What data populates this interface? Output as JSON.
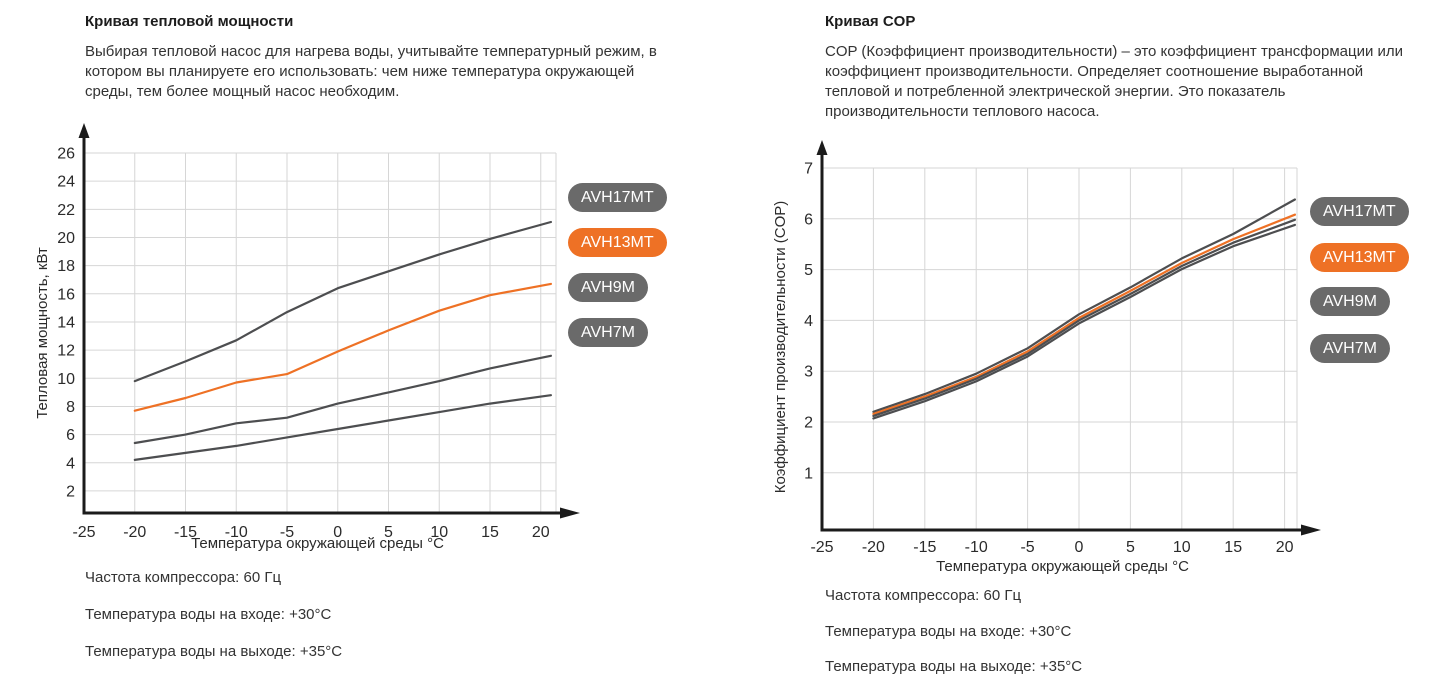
{
  "colors": {
    "orange": "#ee7125",
    "badge_gray": "#6a6a6a",
    "curve_gray": "#4d4e50",
    "grid": "#d6d6d6",
    "axis": "#1b1b1b",
    "text": "#333333",
    "tick_text": "#2b2b2b",
    "badge_text": "#ffffff"
  },
  "left_panel": {
    "title": "Кривая тепловой мощности",
    "description_lines": [
      "Выбирая тепловой насос для нагрева воды, учитывайте температурный режим, в",
      "котором вы планируете его использовать: чем ниже температура окружающей",
      "среды, тем более мощный насос необходим."
    ],
    "notes": [
      "Частота компрессора: 60 Гц",
      "Температура воды на входе: +30°C",
      "Температура воды на выходе: +35°C"
    ]
  },
  "right_panel": {
    "title": "Кривая COP",
    "description_lines": [
      "COP (Коэффициент производительности) – это коэффициент трансформации или",
      "коэффициент производительности. Определяет соотношение выработанной",
      "тепловой и потребленной электрической энергии. Это показатель",
      "производительности теплового насоса."
    ],
    "notes": [
      "Частота компрессора: 60 Гц",
      "Температура воды на входе: +30°C",
      "Температура воды на выходе: +35°C"
    ]
  },
  "chart_data": [
    {
      "type": "line",
      "title": "Кривая тепловой мощности",
      "xlabel": "Температура окружающей среды °C",
      "ylabel": "Тепловая мощность, кВт",
      "grid": true,
      "legend_position": "right",
      "xlim": [
        -25,
        21.5
      ],
      "ylim": [
        0,
        27
      ],
      "xticks": [
        -25,
        -20,
        -15,
        -10,
        -5,
        0,
        5,
        10,
        15,
        20
      ],
      "yticks": [
        2,
        4,
        6,
        8,
        10,
        12,
        14,
        16,
        18,
        20,
        22,
        24,
        26
      ],
      "x": [
        -20,
        -15,
        -10,
        -5,
        0,
        5,
        10,
        15,
        21
      ],
      "series": [
        {
          "name": "AVH17MT",
          "color": "#4d4e50",
          "values": [
            9.8,
            11.2,
            12.7,
            14.7,
            16.4,
            17.6,
            18.8,
            19.9,
            21.1
          ]
        },
        {
          "name": "AVH13MT",
          "color": "#ee7125",
          "values": [
            7.7,
            8.6,
            9.7,
            10.3,
            11.9,
            13.4,
            14.8,
            15.9,
            16.7
          ]
        },
        {
          "name": "AVH9M",
          "color": "#4d4e50",
          "values": [
            5.4,
            6.0,
            6.8,
            7.2,
            8.2,
            9.0,
            9.8,
            10.7,
            11.6
          ]
        },
        {
          "name": "AVH7M",
          "color": "#4d4e50",
          "values": [
            4.2,
            4.7,
            5.2,
            5.8,
            6.4,
            7.0,
            7.6,
            8.2,
            8.8
          ]
        }
      ],
      "legend": [
        {
          "label": "AVH17MT",
          "color": "#6a6a6a"
        },
        {
          "label": "AVH13MT",
          "color": "#ee7125"
        },
        {
          "label": "AVH9M",
          "color": "#6a6a6a"
        },
        {
          "label": "AVH7M",
          "color": "#6a6a6a"
        }
      ]
    },
    {
      "type": "line",
      "title": "Кривая COP",
      "xlabel": "Температура окружающей среды °C",
      "ylabel": "Коэффициент производительности (COP)",
      "grid": true,
      "legend_position": "right",
      "xlim": [
        -25,
        21.5
      ],
      "ylim": [
        0,
        7.3
      ],
      "xticks": [
        -25,
        -20,
        -15,
        -10,
        -5,
        0,
        5,
        10,
        15,
        20
      ],
      "yticks": [
        1,
        2,
        3,
        4,
        5,
        6,
        7
      ],
      "x": [
        -20,
        -15,
        -10,
        -5,
        0,
        5,
        10,
        15,
        21
      ],
      "series": [
        {
          "name": "AVH17MT",
          "color": "#4d4e50",
          "values": [
            2.2,
            2.55,
            2.95,
            3.45,
            4.12,
            4.65,
            5.22,
            5.7,
            6.38
          ]
        },
        {
          "name": "AVH13MT",
          "color": "#ee7125",
          "values": [
            2.16,
            2.5,
            2.89,
            3.39,
            4.05,
            4.58,
            5.13,
            5.6,
            6.08
          ]
        },
        {
          "name": "AVH9M",
          "color": "#4d4e50",
          "values": [
            2.12,
            2.46,
            2.85,
            3.34,
            4.0,
            4.52,
            5.07,
            5.53,
            5.98
          ]
        },
        {
          "name": "AVH7M",
          "color": "#4d4e50",
          "values": [
            2.07,
            2.41,
            2.8,
            3.29,
            3.94,
            4.46,
            5.01,
            5.46,
            5.88
          ]
        }
      ],
      "legend": [
        {
          "label": "AVH17MT",
          "color": "#6a6a6a"
        },
        {
          "label": "AVH13MT",
          "color": "#ee7125"
        },
        {
          "label": "AVH9M",
          "color": "#6a6a6a"
        },
        {
          "label": "AVH7M",
          "color": "#6a6a6a"
        }
      ]
    }
  ]
}
